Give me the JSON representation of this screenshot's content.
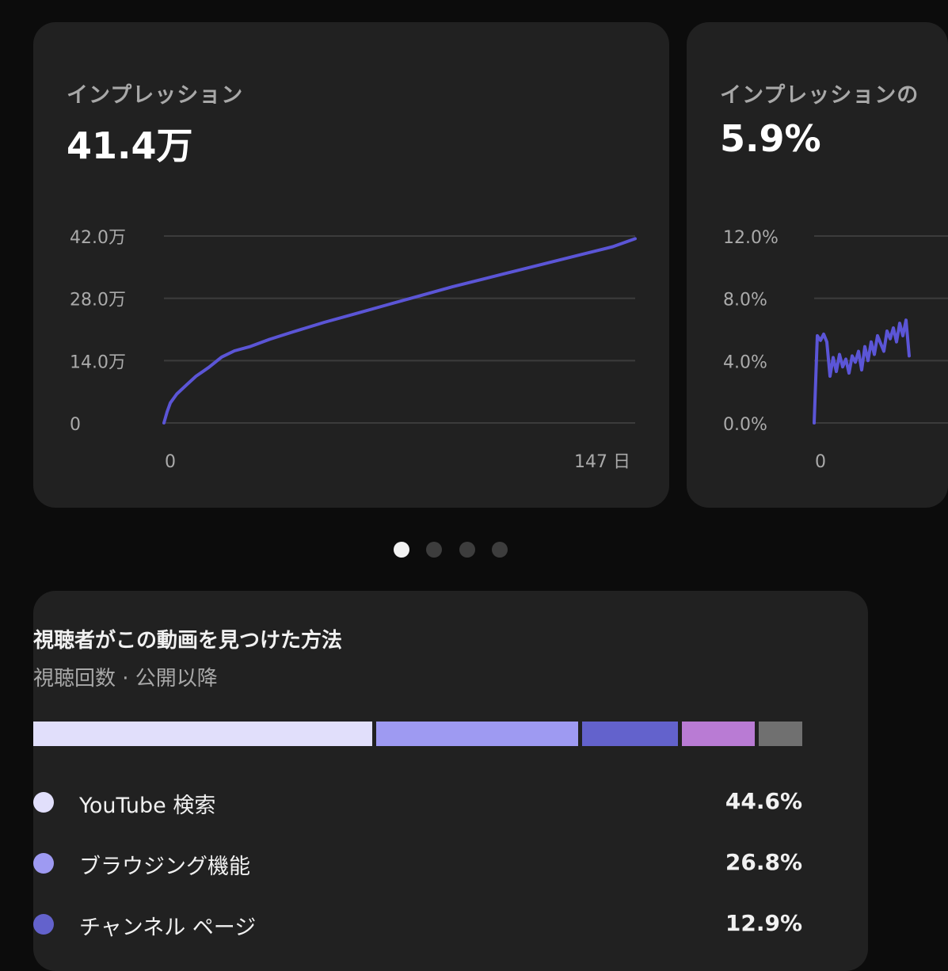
{
  "cards": [
    {
      "title": "インプレッション",
      "value": "41.4万",
      "chart_data": {
        "type": "line",
        "y_ticks": [
          "42.0万",
          "28.0万",
          "14.0万",
          "0"
        ],
        "x_ticks": [
          "0",
          "147 日"
        ],
        "ylim": [
          0,
          420000
        ],
        "xlim": [
          0,
          147
        ],
        "series_color": "#5b55d6",
        "x": [
          0,
          1,
          2,
          4,
          7,
          10,
          14,
          18,
          22,
          27,
          33,
          40,
          50,
          60,
          70,
          80,
          90,
          100,
          110,
          120,
          130,
          140,
          147
        ],
        "values": [
          0,
          25000,
          45000,
          65000,
          85000,
          105000,
          125000,
          148000,
          162000,
          172000,
          188000,
          204000,
          226000,
          246000,
          266000,
          286000,
          306000,
          324000,
          342000,
          360000,
          378000,
          396000,
          414000
        ]
      }
    },
    {
      "title": "インプレッションの",
      "value": "5.9%",
      "chart_data": {
        "type": "line",
        "y_ticks": [
          "12.0%",
          "8.0%",
          "4.0%",
          "0.0%"
        ],
        "x_ticks": [
          "0"
        ],
        "ylim": [
          0,
          12
        ],
        "series_color": "#5b55d6",
        "x": [
          0,
          1,
          2,
          3,
          4,
          5,
          6,
          7,
          8,
          9,
          10,
          11,
          12,
          13,
          14,
          15,
          16,
          17,
          18,
          19,
          20,
          21,
          22,
          23,
          24,
          25,
          26,
          27,
          28,
          29,
          30
        ],
        "values": [
          0,
          5.6,
          5.3,
          5.7,
          5.2,
          3.0,
          4.2,
          3.3,
          4.4,
          3.6,
          4.1,
          3.2,
          4.3,
          3.9,
          4.6,
          3.4,
          4.9,
          4.0,
          5.2,
          4.4,
          5.6,
          5.1,
          4.6,
          5.9,
          5.4,
          6.1,
          5.2,
          6.4,
          5.6,
          6.6,
          4.3
        ]
      }
    }
  ],
  "pager": {
    "count": 4,
    "active": 0
  },
  "traffic": {
    "title": "視聴者がこの動画を見つけた方法",
    "subtitle": "視聴回数 · 公開以降",
    "segments": [
      {
        "label": "YouTube 検索",
        "value_text": "44.6%",
        "value": 44.6,
        "color": "#e1dffb"
      },
      {
        "label": "ブラウジング機能",
        "value_text": "26.8%",
        "value": 26.8,
        "color": "#9e9af2"
      },
      {
        "label": "チャンネル ページ",
        "value_text": "12.9%",
        "value": 12.9,
        "color": "#6362cc"
      },
      {
        "value": 10.0,
        "color": "#b97bd4"
      },
      {
        "value": 5.7,
        "color": "#707070"
      }
    ]
  }
}
